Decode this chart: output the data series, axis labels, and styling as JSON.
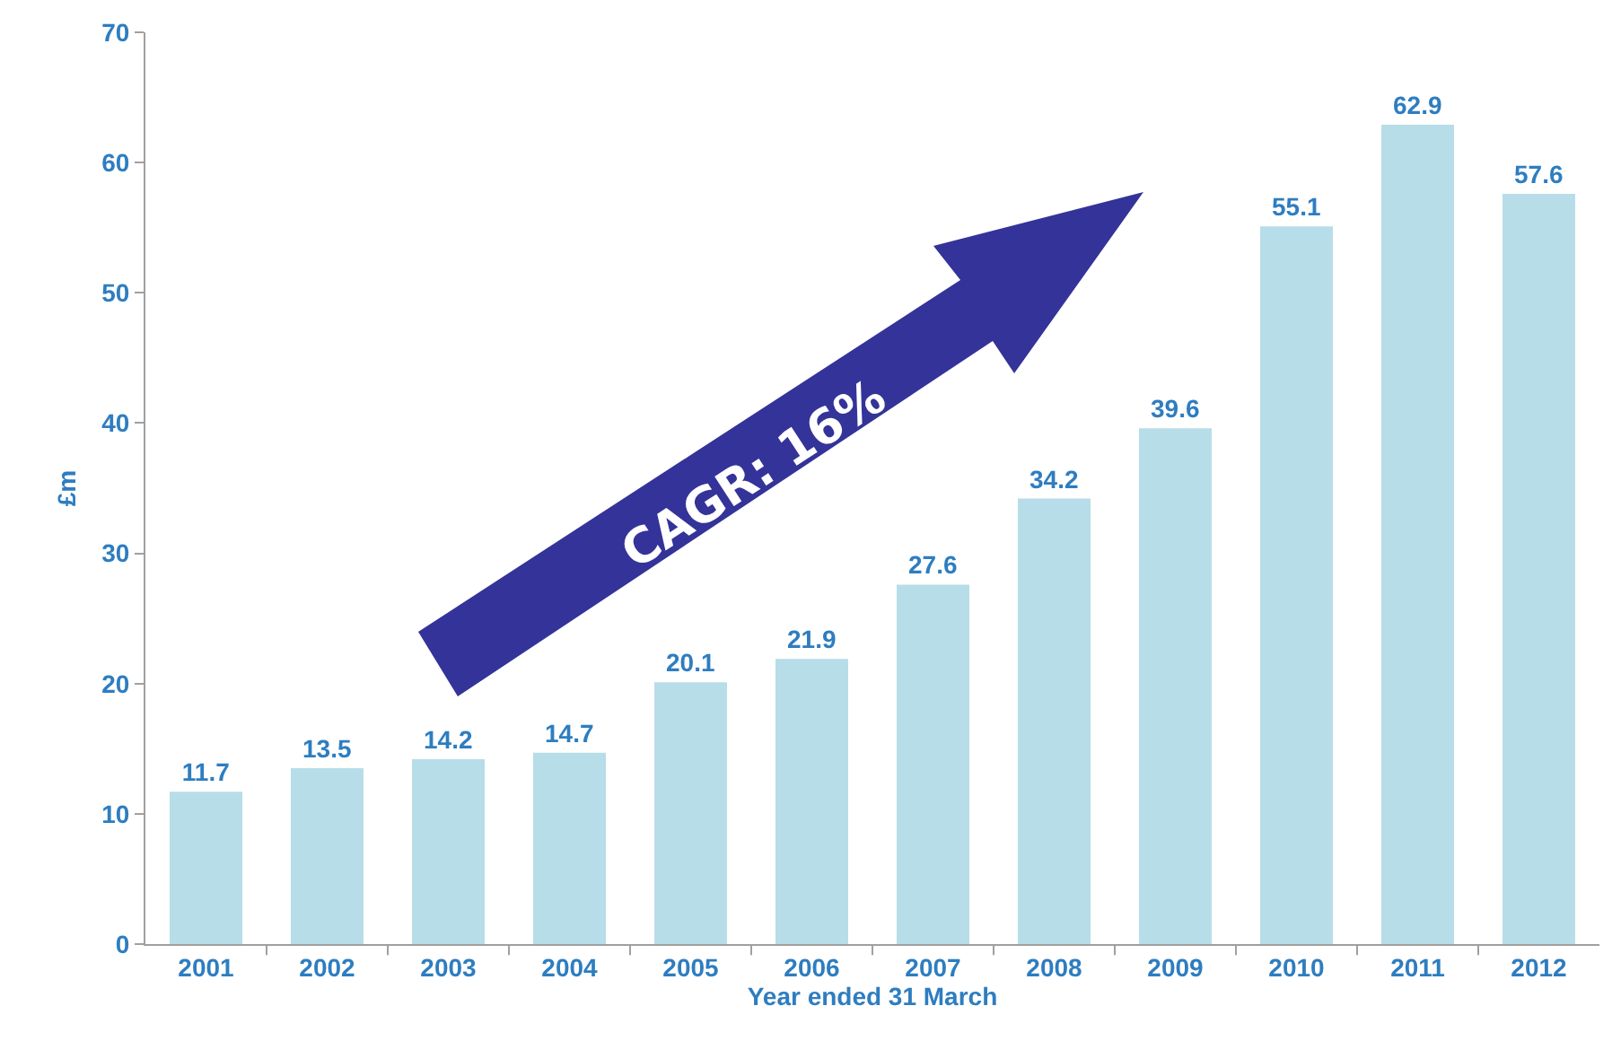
{
  "chart_data": {
    "type": "bar",
    "xlabel": "Year ended 31 March",
    "ylabel": "£m",
    "categories": [
      "2001",
      "2002",
      "2003",
      "2004",
      "2005",
      "2006",
      "2007",
      "2008",
      "2009",
      "2010",
      "2011",
      "2012"
    ],
    "values": [
      11.7,
      13.5,
      14.2,
      14.7,
      20.1,
      21.9,
      27.6,
      34.2,
      39.6,
      55.1,
      62.9,
      57.6
    ],
    "color": "#b7dde8",
    "ylim": [
      0,
      70
    ],
    "yticks": [
      0,
      10,
      20,
      30,
      40,
      50,
      60,
      70
    ],
    "grid": false,
    "data_labels": true,
    "annotations": [
      "CAGR: 16%"
    ]
  }
}
